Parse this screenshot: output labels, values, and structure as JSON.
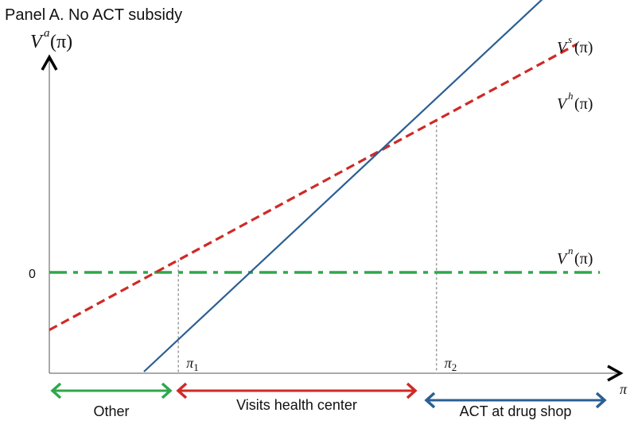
{
  "chart_data": {
    "type": "line",
    "title": "Panel A. No ACT subsidy",
    "ylabel": {
      "main": "V",
      "sup": "a",
      "arg": "(π)"
    },
    "xlabel": "π",
    "y_zero_label": "0",
    "xlim": [
      0,
      1
    ],
    "ylim": [
      -1,
      3
    ],
    "series": [
      {
        "key": "Vs",
        "label_main": "V",
        "label_sup": "s",
        "label_arg": "(π)",
        "color": "#2b5f93",
        "dash": "solid",
        "x": [
          0.165,
          0.9
        ],
        "y": [
          -1.0,
          2.97
        ]
      },
      {
        "key": "Vh",
        "label_main": "V",
        "label_sup": "h",
        "label_arg": "(π)",
        "color": "#cf2a27",
        "dash": "dashed",
        "x": [
          0.0,
          0.92
        ],
        "y": [
          -0.58,
          2.3
        ]
      },
      {
        "key": "Vn",
        "label_main": "V",
        "label_sup": "n",
        "label_arg": "(π)",
        "color": "#2ea84b",
        "dash": "dashdot",
        "x": [
          0.0,
          0.96
        ],
        "y": [
          0,
          0
        ]
      }
    ],
    "thresholds": [
      {
        "main": "π",
        "sub": "1",
        "x": 0.225
      },
      {
        "main": "π",
        "sub": "2",
        "x": 0.675
      }
    ],
    "regions": [
      {
        "label": "Other",
        "from": 0.0,
        "to": 0.225,
        "color": "#2ea84b"
      },
      {
        "label": "Visits health center",
        "from": 0.225,
        "to": 0.675,
        "color": "#cf2a27"
      },
      {
        "label": "ACT at drug shop",
        "from": 0.675,
        "to": 1.0,
        "color": "#2b5f93"
      }
    ]
  }
}
